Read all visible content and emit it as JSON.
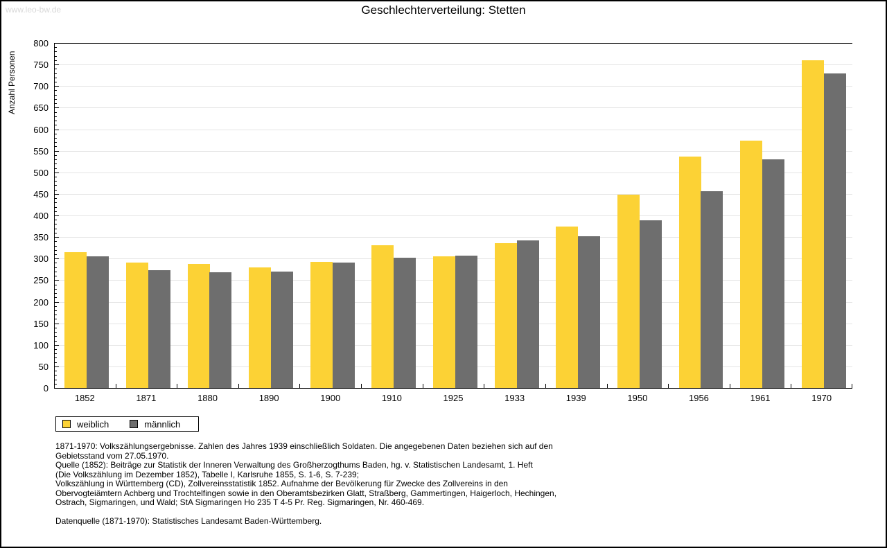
{
  "watermark": "www.leo-bw.de",
  "title": "Geschlechterverteilung: Stetten",
  "chart_data": {
    "type": "bar",
    "title": "Geschlechterverteilung: Stetten",
    "xlabel": "",
    "ylabel": "Anzahl Personen",
    "ylim": [
      0,
      800
    ],
    "ytick_step": 50,
    "ytick_minor_step": 10,
    "grid": true,
    "legend_position": "bottom-left",
    "categories": [
      "1852",
      "1871",
      "1880",
      "1890",
      "1900",
      "1910",
      "1925",
      "1933",
      "1939",
      "1950",
      "1956",
      "1961",
      "1970"
    ],
    "series": [
      {
        "name": "weiblich",
        "color": "#fcd235",
        "values": [
          315,
          290,
          288,
          279,
          293,
          331,
          306,
          336,
          375,
          448,
          537,
          574,
          760
        ]
      },
      {
        "name": "männlich",
        "color": "#6e6e6e",
        "values": [
          305,
          273,
          268,
          270,
          291,
          302,
          307,
          342,
          352,
          388,
          456,
          530,
          729
        ]
      }
    ]
  },
  "legend": {
    "items": [
      {
        "label": "weiblich",
        "color": "#fcd235"
      },
      {
        "label": "männlich",
        "color": "#6e6e6e"
      }
    ]
  },
  "footnotes": {
    "lines": [
      "1871-1970: Volkszählungsergebnisse. Zahlen des Jahres 1939 einschließlich Soldaten. Die angegebenen Daten beziehen sich auf den",
      "Gebietsstand vom 27.05.1970.",
      "Quelle (1852): Beiträge zur Statistik der Inneren Verwaltung des Großherzogthums Baden, hg. v. Statistischen Landesamt, 1. Heft",
      "(Die Volkszählung im Dezember 1852), Tabelle I, Karlsruhe 1855, S. 1-6, S. 7-239;",
      "Volkszählung in Württemberg (CD), Zollvereinsstatistik 1852. Aufnahme der Bevölkerung für Zwecke des Zollvereins in den",
      "Obervogteiämtern Achberg und Trochtelfingen sowie in den Oberamtsbezirken Glatt, Straßberg, Gammertingen, Haigerloch, Hechingen,",
      "Ostrach, Sigmaringen, und Wald; StA Sigmaringen Ho 235 T 4-5 Pr. Reg. Sigmaringen, Nr. 460-469."
    ],
    "datasource": "Datenquelle (1871-1970): Statistisches Landesamt Baden-Württemberg."
  },
  "colors": {
    "weiblich": "#fcd235",
    "maennlich": "#6e6e6e",
    "gridline": "#e4e4e4",
    "watermark": "#d8d8d8",
    "axis": "#000000"
  }
}
